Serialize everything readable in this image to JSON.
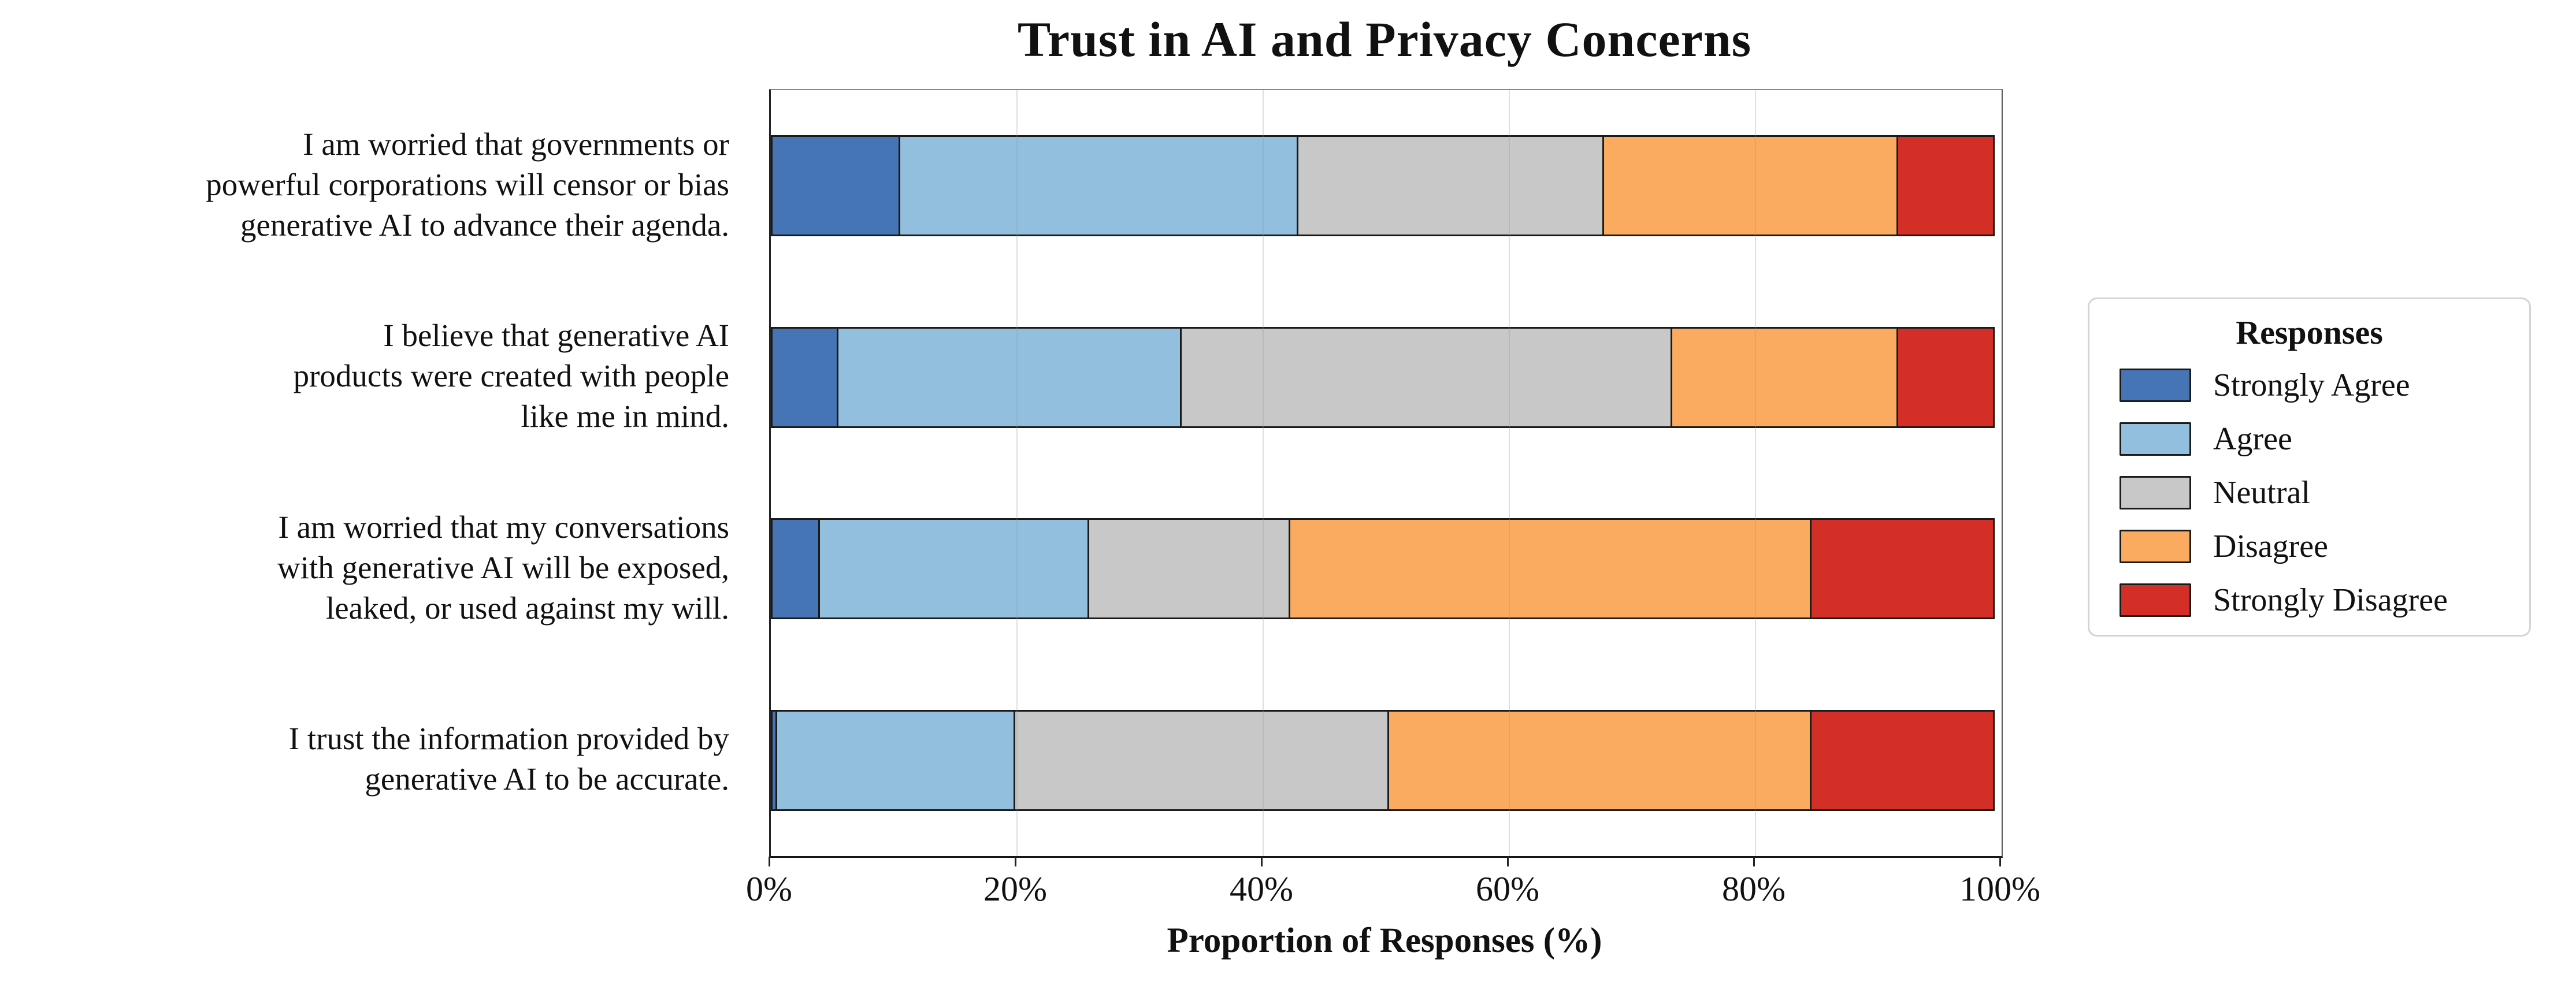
{
  "title": "Trust in AI and Privacy Concerns",
  "xlabel": "Proportion of Responses (%)",
  "legend_title": "Responses",
  "x_ticks": [
    {
      "value": 0,
      "label": "0%"
    },
    {
      "value": 20,
      "label": "20%"
    },
    {
      "value": 40,
      "label": "40%"
    },
    {
      "value": 60,
      "label": "60%"
    },
    {
      "value": 80,
      "label": "80%"
    },
    {
      "value": 100,
      "label": "100%"
    }
  ],
  "chart_data": {
    "type": "bar",
    "orientation": "horizontal",
    "stacked": true,
    "title": "Trust in AI and Privacy Concerns",
    "xlabel": "Proportion of Responses (%)",
    "ylabel": "",
    "xlim": [
      0,
      100
    ],
    "grid": "vertical light gray lines at 20% intervals",
    "legend_position": "center right, outside plot",
    "categories": [
      {
        "text": "I am worried that governments or powerful corporations will censor or bias generative AI to advance their agenda.",
        "lines": [
          "I am worried that governments or",
          "powerful corporations will censor or bias",
          "generative AI to advance their agenda."
        ]
      },
      {
        "text": "I believe that generative AI products were created with people like me in mind.",
        "lines": [
          "I believe that generative AI",
          "products were created with people",
          "like me in mind."
        ]
      },
      {
        "text": "I am worried that my conversations with generative AI will be exposed, leaked, or used against my will.",
        "lines": [
          "I am worried that my conversations",
          "with generative AI will be exposed,",
          "leaked, or used against my will."
        ]
      },
      {
        "text": "I trust the information provided by generative AI to be accurate.",
        "lines": [
          "I trust the information provided by",
          "generative AI to be accurate."
        ]
      }
    ],
    "series": [
      {
        "name": "Strongly Agree",
        "color": "#4575b4",
        "values": [
          10.5,
          5.5,
          4.0,
          0.5
        ]
      },
      {
        "name": "Agree",
        "color": "#92bfdd",
        "values": [
          32.5,
          28.0,
          22.0,
          19.5
        ]
      },
      {
        "name": "Neutral",
        "color": "#c8c8c8",
        "values": [
          25.0,
          40.0,
          16.5,
          30.5
        ]
      },
      {
        "name": "Disagree",
        "color": "#fbab60",
        "values": [
          24.0,
          18.5,
          42.5,
          34.5
        ]
      },
      {
        "name": "Strongly Disagree",
        "color": "#d32f27",
        "values": [
          8.0,
          8.0,
          15.0,
          15.0
        ]
      }
    ]
  },
  "styles": {
    "bar_edge_color": "#1a1a1a",
    "grid_color": "#dcdcdc",
    "axis_color": "#222222",
    "frame_color": "#777777",
    "legend_border_color": "#d4d4d4",
    "text_color": "#111111",
    "background": "#ffffff"
  }
}
